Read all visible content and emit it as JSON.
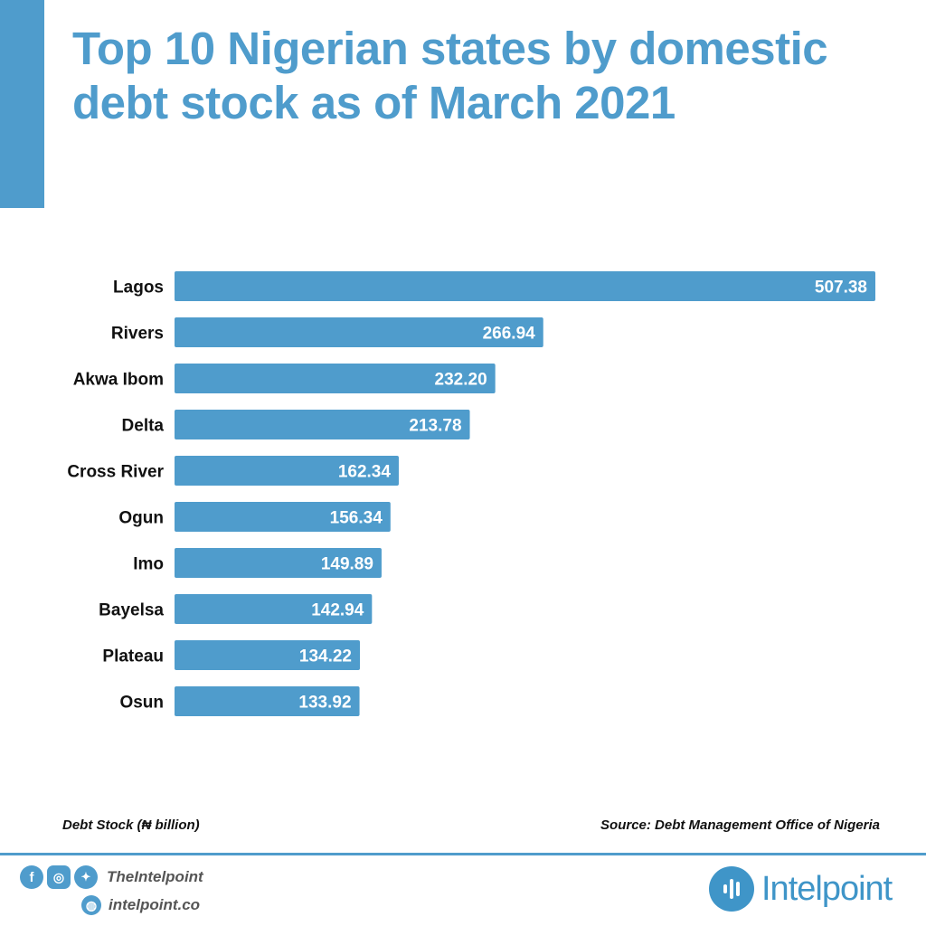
{
  "title": "Top 10 Nigerian states by domestic debt stock as of March 2021",
  "chart_data": {
    "type": "bar",
    "orientation": "horizontal",
    "title": "Top 10 Nigerian states by domestic debt stock as of March 2021",
    "categories": [
      "Lagos",
      "Rivers",
      "Akwa Ibom",
      "Delta",
      "Cross River",
      "Ogun",
      "Imo",
      "Bayelsa",
      "Plateau",
      "Osun"
    ],
    "values": [
      507.38,
      266.94,
      232.2,
      213.78,
      162.34,
      156.34,
      149.89,
      142.94,
      134.22,
      133.92
    ],
    "labels": [
      "507.38",
      "266.94",
      "232.20",
      "213.78",
      "162.34",
      "156.34",
      "149.89",
      "142.94",
      "134.22",
      "133.92"
    ],
    "xlabel": "Debt Stock (₦ billion)",
    "grid": false,
    "bar_color": "#4f9ccc"
  },
  "footer": {
    "unit_note": "Debt Stock (₦ billion)",
    "source": "Source: Debt Management Office of Nigeria",
    "handle": "TheIntelpoint",
    "website": "intelpoint.co",
    "brand": "Intelpoint",
    "icons": [
      "facebook-icon",
      "instagram-icon",
      "twitter-icon",
      "globe-icon"
    ]
  },
  "colors": {
    "accent": "#4f9ccc",
    "text": "#111111"
  }
}
